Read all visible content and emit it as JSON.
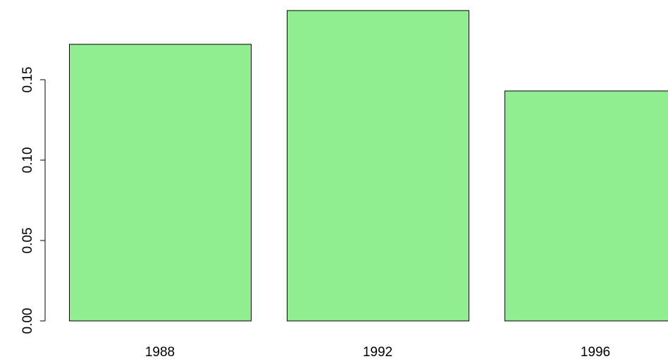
{
  "chart_data": {
    "type": "bar",
    "categories": [
      "1988",
      "1992",
      "1996"
    ],
    "values": [
      0.172,
      0.193,
      0.143
    ],
    "color": "#90ee90",
    "ylim": [
      0,
      0.2
    ],
    "yticks": [
      {
        "value": 0,
        "label": "0.00"
      },
      {
        "value": 0.05,
        "label": "0.05"
      },
      {
        "value": 0.1,
        "label": "0.10"
      },
      {
        "value": 0.15,
        "label": "0.15"
      }
    ]
  }
}
